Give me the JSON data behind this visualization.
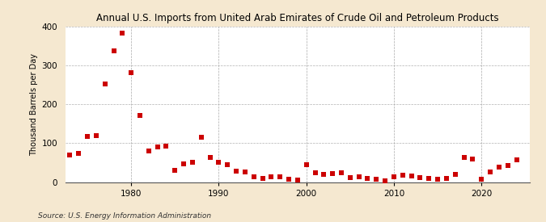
{
  "title": "Annual U.S. Imports from United Arab Emirates of Crude Oil and Petroleum Products",
  "ylabel": "Thousand Barrels per Day",
  "source": "Source: U.S. Energy Information Administration",
  "background_color": "#f5e8d0",
  "plot_background_color": "#ffffff",
  "marker_color": "#cc0000",
  "marker_size": 4,
  "xlim": [
    1972.5,
    2025.5
  ],
  "ylim": [
    0,
    400
  ],
  "yticks": [
    0,
    100,
    200,
    300,
    400
  ],
  "xticks": [
    1980,
    1990,
    2000,
    2010,
    2020
  ],
  "years": [
    1973,
    1974,
    1975,
    1976,
    1977,
    1978,
    1979,
    1980,
    1981,
    1982,
    1983,
    1984,
    1985,
    1986,
    1987,
    1988,
    1989,
    1990,
    1991,
    1992,
    1993,
    1994,
    1995,
    1996,
    1997,
    1998,
    1999,
    2000,
    2001,
    2002,
    2003,
    2004,
    2005,
    2006,
    2007,
    2008,
    2009,
    2010,
    2011,
    2012,
    2013,
    2014,
    2015,
    2016,
    2017,
    2018,
    2019,
    2020,
    2021,
    2022,
    2023,
    2024
  ],
  "values": [
    70,
    73,
    118,
    120,
    253,
    337,
    384,
    281,
    171,
    80,
    90,
    92,
    31,
    47,
    50,
    116,
    63,
    50,
    45,
    29,
    27,
    14,
    10,
    14,
    13,
    8,
    5,
    44,
    24,
    19,
    21,
    24,
    11,
    13,
    9,
    7,
    3,
    14,
    18,
    15,
    12,
    10,
    8,
    10,
    20,
    63,
    60,
    8,
    27,
    38,
    42,
    57
  ]
}
